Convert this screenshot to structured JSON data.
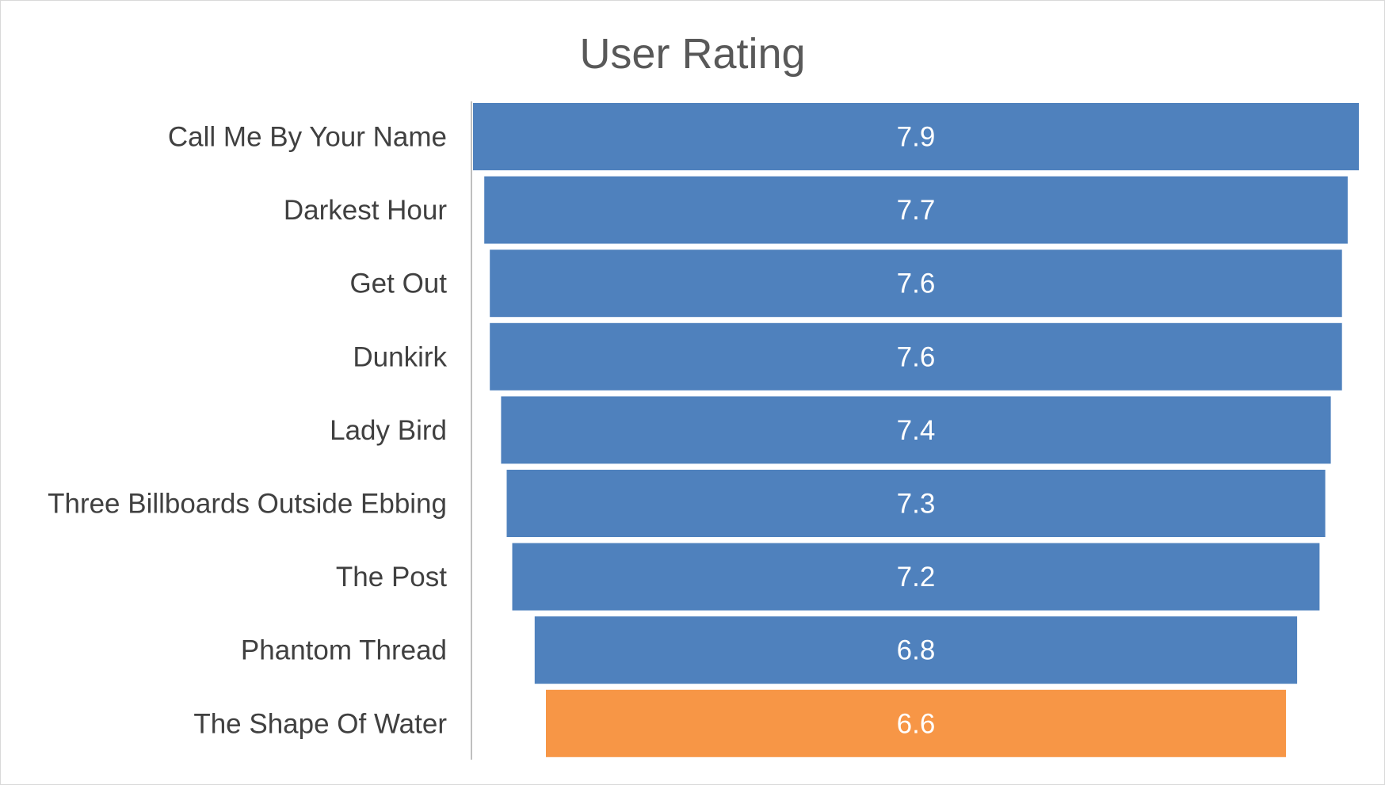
{
  "chart_data": {
    "type": "bar",
    "subtype": "funnel",
    "title": "User Rating",
    "xlabel": "",
    "ylabel": "",
    "categories": [
      "Call Me By Your Name",
      "Darkest Hour",
      "Get Out",
      "Dunkirk",
      "Lady Bird",
      "Three Billboards Outside Ebbing",
      "The Post",
      "Phantom Thread",
      "The Shape Of Water"
    ],
    "values": [
      7.9,
      7.7,
      7.6,
      7.6,
      7.4,
      7.3,
      7.2,
      6.8,
      6.6
    ],
    "data_labels": [
      "7.9",
      "7.7",
      "7.6",
      "7.6",
      "7.4",
      "7.3",
      "7.2",
      "6.8",
      "6.6"
    ],
    "colors": [
      "#4f81bd",
      "#4f81bd",
      "#4f81bd",
      "#4f81bd",
      "#4f81bd",
      "#4f81bd",
      "#4f81bd",
      "#4f81bd",
      "#f79646"
    ],
    "grid": false,
    "legend": "none"
  }
}
